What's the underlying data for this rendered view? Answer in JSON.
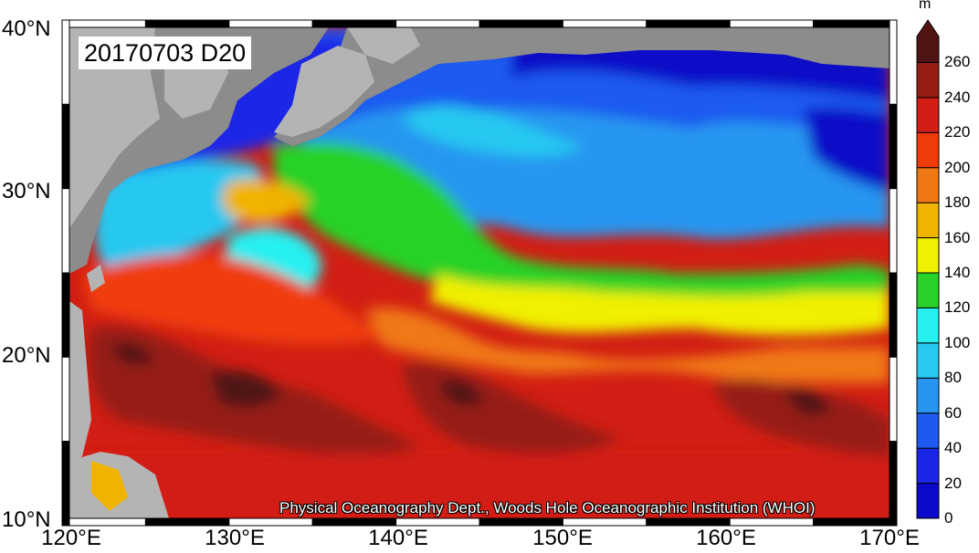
{
  "title": "20170703 D20",
  "credit": "Physical Oceanography Dept., Woods Hole Oceanographic Institution (WHOI)",
  "lat_labels": [
    "40°N",
    "30°N",
    "20°N",
    "10°N"
  ],
  "lon_labels": [
    "120°E",
    "130°E",
    "140°E",
    "150°E",
    "160°E",
    "170°E"
  ],
  "colorbar": {
    "unit": "m",
    "levels": [
      0,
      20,
      40,
      60,
      80,
      100,
      120,
      140,
      160,
      180,
      200,
      220,
      240,
      260
    ],
    "labels": [
      "0",
      "20",
      "40",
      "60",
      "80",
      "100",
      "120",
      "140",
      "160",
      "180",
      "200",
      "220",
      "240",
      "260"
    ],
    "colors": [
      "#0a0ac8",
      "#1a28e6",
      "#1e5af0",
      "#2896f0",
      "#28c8f0",
      "#28f0f0",
      "#28d228",
      "#f0f000",
      "#f0b400",
      "#f07814",
      "#f03c0a",
      "#d21e14",
      "#961e14",
      "#501414"
    ]
  },
  "colors": {
    "land": "#b4b4b4",
    "coast_land": "#8c8c8c",
    "frame_dark": "#000000",
    "frame_light": "#ffffff"
  }
}
